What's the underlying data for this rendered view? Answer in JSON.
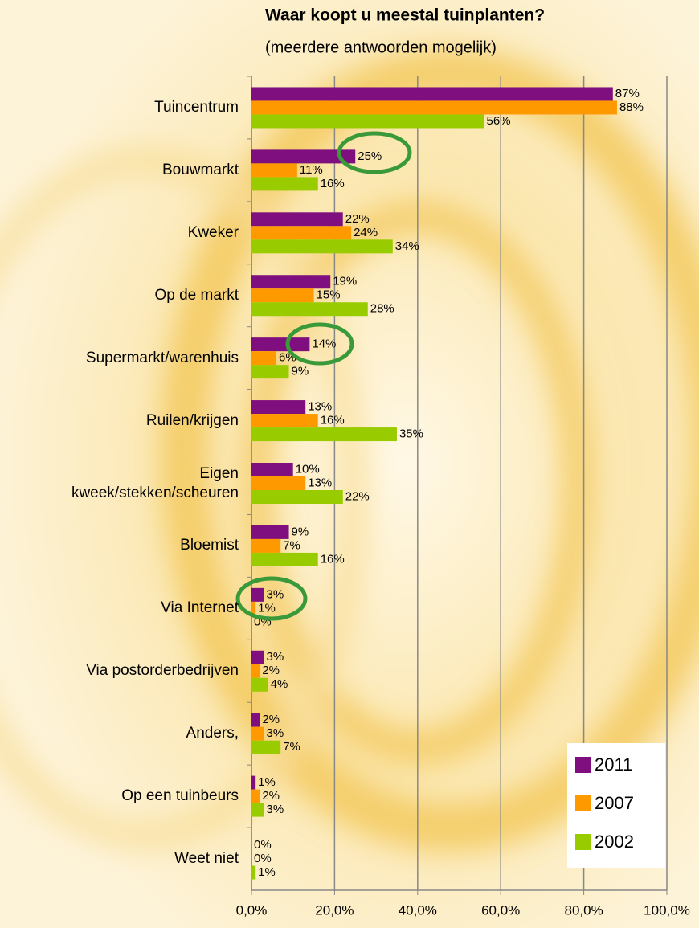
{
  "chart_data": {
    "type": "hbar",
    "title": "Waar koopt u meestal tuinplanten?",
    "subtitle": "(meerdere antwoorden mogelijk)",
    "categories": [
      "Tuincentrum",
      "Bouwmarkt",
      "Kweker",
      "Op de markt",
      "Supermarkt/warenhuis",
      "Ruilen/krijgen",
      "Eigen kweek/stekken/scheuren",
      "Bloemist",
      "Via Internet",
      "Via postorderbedrijven",
      "Anders,",
      "Op een tuinbeurs",
      "Weet niet"
    ],
    "series": [
      {
        "name": "2011",
        "color": "#7f0f7e",
        "values": [
          87,
          25,
          22,
          19,
          14,
          13,
          10,
          9,
          3,
          3,
          2,
          1,
          0
        ],
        "value_labels": [
          "87%",
          "25%",
          "22%",
          "19%",
          "14%",
          "13%",
          "10%",
          "9%",
          "3%",
          "3%",
          "2%",
          "1%",
          "0%"
        ]
      },
      {
        "name": "2007",
        "color": "#ff9900",
        "values": [
          88,
          11,
          24,
          15,
          6,
          16,
          13,
          7,
          1,
          2,
          3,
          2,
          0
        ],
        "value_labels": [
          "88%",
          "11%",
          "24%",
          "15%",
          "6%",
          "16%",
          "13%",
          "7%",
          "1%",
          "2%",
          "3%",
          "2%",
          "0%"
        ]
      },
      {
        "name": "2002",
        "color": "#99cc00",
        "values": [
          56,
          16,
          34,
          28,
          9,
          35,
          22,
          16,
          0,
          4,
          7,
          3,
          1
        ],
        "value_labels": [
          "56%",
          "16%",
          "34%",
          "28%",
          "9%",
          "35%",
          "22%",
          "16%",
          "0%",
          "4%",
          "7%",
          "3%",
          "1%"
        ]
      }
    ],
    "xlim": [
      0,
      100
    ],
    "xticks": [
      {
        "value": 0,
        "label": "0,0%"
      },
      {
        "value": 20,
        "label": "20,0%"
      },
      {
        "value": 40,
        "label": "40,0%"
      },
      {
        "value": 60,
        "label": "60,0%"
      },
      {
        "value": 80,
        "label": "80,0%"
      },
      {
        "value": 100,
        "label": "100,0%"
      }
    ],
    "grid": true,
    "legend": "bottom-right"
  }
}
